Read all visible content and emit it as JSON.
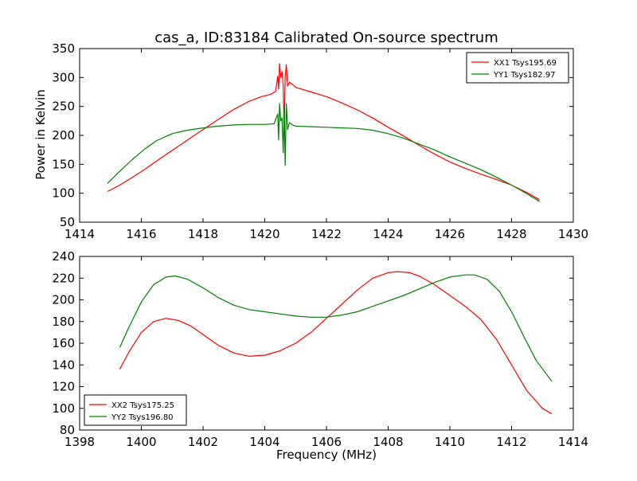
{
  "figure": {
    "title": "cas_a, ID:83184 Calibrated On-source spectrum",
    "ylabel": "Power in Kelvin",
    "xlabel": "Frequency (MHz)"
  },
  "chart_data": [
    {
      "type": "line",
      "title": "cas_a, ID:83184 Calibrated On-source spectrum",
      "xlabel": "",
      "ylabel": "Power in Kelvin",
      "xlim": [
        1414,
        1430
      ],
      "ylim": [
        50,
        350
      ],
      "xticks": [
        1414,
        1416,
        1418,
        1420,
        1422,
        1424,
        1426,
        1428,
        1430
      ],
      "yticks": [
        50,
        100,
        150,
        200,
        250,
        300,
        350
      ],
      "grid": false,
      "legend_position": "top-right",
      "series": [
        {
          "name": "XX1 Tsys195.69",
          "color": "#ff0000",
          "x": [
            1414.9,
            1415.3,
            1415.7,
            1416.1,
            1416.5,
            1417.0,
            1417.5,
            1418.0,
            1418.5,
            1419.0,
            1419.5,
            1419.9,
            1420.2,
            1420.35,
            1420.42,
            1420.45,
            1420.48,
            1420.52,
            1420.56,
            1420.6,
            1420.63,
            1420.66,
            1420.7,
            1420.74,
            1420.8,
            1420.9,
            1421.0,
            1421.5,
            1422.0,
            1422.5,
            1423.0,
            1423.5,
            1424.0,
            1424.5,
            1425.0,
            1425.5,
            1426.0,
            1426.5,
            1427.0,
            1427.5,
            1428.0,
            1428.5,
            1428.9
          ],
          "y": [
            103,
            114,
            127,
            141,
            156,
            174,
            192,
            210,
            228,
            245,
            259,
            267,
            271,
            276,
            302,
            280,
            324,
            300,
            310,
            285,
            210,
            300,
            322,
            285,
            292,
            288,
            283,
            275,
            267,
            256,
            244,
            230,
            214,
            199,
            183,
            168,
            154,
            143,
            133,
            124,
            114,
            101,
            89
          ]
        },
        {
          "name": "YY1 Tsys182.97",
          "color": "#008000",
          "x": [
            1414.9,
            1415.3,
            1415.7,
            1416.1,
            1416.5,
            1417.0,
            1417.5,
            1418.0,
            1418.5,
            1419.0,
            1419.5,
            1420.0,
            1420.3,
            1420.42,
            1420.45,
            1420.48,
            1420.52,
            1420.56,
            1420.6,
            1420.63,
            1420.66,
            1420.7,
            1420.74,
            1420.8,
            1420.9,
            1421.0,
            1421.5,
            1422.0,
            1422.5,
            1423.0,
            1423.5,
            1424.0,
            1424.5,
            1425.0,
            1425.5,
            1426.0,
            1426.5,
            1427.0,
            1427.5,
            1428.0,
            1428.5,
            1428.9
          ],
          "y": [
            117,
            138,
            158,
            176,
            191,
            203,
            209,
            213,
            216,
            218,
            219,
            219,
            220,
            237,
            192,
            255,
            225,
            230,
            170,
            250,
            148,
            255,
            210,
            222,
            218,
            216,
            215,
            214,
            213,
            212,
            209,
            203,
            195,
            185,
            175,
            163,
            152,
            141,
            128,
            114,
            99,
            86
          ]
        }
      ]
    },
    {
      "type": "line",
      "title": "",
      "xlabel": "Frequency (MHz)",
      "ylabel": "",
      "xlim": [
        1398,
        1414
      ],
      "ylim": [
        80,
        240
      ],
      "xticks": [
        1398,
        1400,
        1402,
        1404,
        1406,
        1408,
        1410,
        1412,
        1414
      ],
      "yticks": [
        80,
        100,
        120,
        140,
        160,
        180,
        200,
        220,
        240
      ],
      "grid": false,
      "legend_position": "bottom-left",
      "series": [
        {
          "name": "XX2 Tsys175.25",
          "color": "#ff0000",
          "x": [
            1399.3,
            1399.6,
            1400.0,
            1400.4,
            1400.8,
            1401.2,
            1401.6,
            1402.0,
            1402.5,
            1403.0,
            1403.5,
            1404.0,
            1404.5,
            1405.0,
            1405.5,
            1406.0,
            1406.5,
            1407.0,
            1407.5,
            1408.0,
            1408.3,
            1408.7,
            1409.0,
            1409.5,
            1410.0,
            1410.5,
            1411.0,
            1411.5,
            1412.0,
            1412.5,
            1413.0,
            1413.3
          ],
          "y": [
            136,
            152,
            170,
            180,
            183,
            181,
            176,
            168,
            158,
            151,
            148,
            149,
            153,
            160,
            170,
            183,
            196,
            209,
            220,
            225,
            226,
            225,
            222,
            214,
            204,
            194,
            182,
            164,
            140,
            116,
            100,
            95
          ]
        },
        {
          "name": "YY2 Tsys196.80",
          "color": "#008000",
          "x": [
            1399.3,
            1399.6,
            1400.0,
            1400.4,
            1400.8,
            1401.1,
            1401.5,
            1402.0,
            1402.5,
            1403.0,
            1403.5,
            1404.0,
            1404.5,
            1405.0,
            1405.5,
            1406.0,
            1406.5,
            1407.0,
            1407.5,
            1408.0,
            1408.5,
            1409.0,
            1409.5,
            1410.0,
            1410.5,
            1410.8,
            1411.2,
            1411.6,
            1412.0,
            1412.4,
            1412.8,
            1413.3
          ],
          "y": [
            156,
            175,
            198,
            214,
            221,
            222,
            219,
            211,
            202,
            195,
            191,
            189,
            187,
            185,
            184,
            184,
            186,
            189,
            194,
            199,
            204,
            210,
            216,
            221,
            223,
            223,
            219,
            208,
            189,
            166,
            144,
            125
          ]
        }
      ]
    }
  ]
}
